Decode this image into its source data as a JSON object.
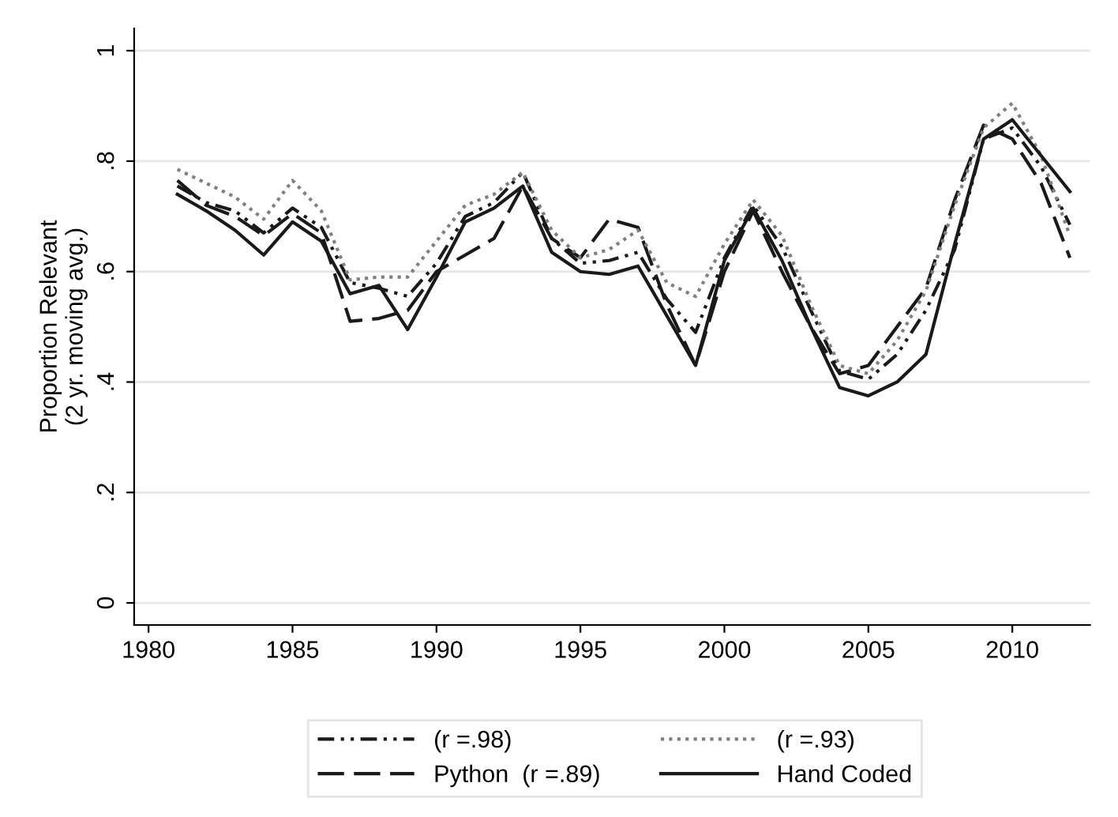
{
  "chart_data": {
    "type": "line",
    "ylabel": "Proportion Relevant\n(2 yr. moving avg.)",
    "x": [
      1981,
      1982,
      1983,
      1984,
      1985,
      1986,
      1987,
      1988,
      1989,
      1990,
      1991,
      1992,
      1993,
      1994,
      1995,
      1996,
      1997,
      1998,
      1999,
      2000,
      2001,
      2002,
      2003,
      2004,
      2005,
      2006,
      2007,
      2008,
      2009,
      2010,
      2011,
      2012
    ],
    "series": [
      {
        "name": "(r =.98)",
        "color": "#1a1a1a",
        "line_style": "dashdot",
        "values": [
          0.755,
          0.725,
          0.71,
          0.67,
          0.715,
          0.68,
          0.58,
          0.57,
          0.555,
          0.615,
          0.7,
          0.725,
          0.78,
          0.66,
          0.615,
          0.62,
          0.635,
          0.55,
          0.49,
          0.625,
          0.72,
          0.645,
          0.53,
          0.42,
          0.405,
          0.45,
          0.53,
          0.64,
          0.84,
          0.86,
          0.79,
          0.685
        ]
      },
      {
        "name": "Python  (r =.89)",
        "color": "#1a1a1a",
        "line_style": "dashed",
        "values": [
          0.765,
          0.72,
          0.7,
          0.665,
          0.705,
          0.67,
          0.51,
          0.515,
          0.53,
          0.6,
          0.63,
          0.66,
          0.755,
          0.66,
          0.625,
          0.695,
          0.68,
          0.54,
          0.43,
          0.6,
          0.71,
          0.6,
          0.5,
          0.415,
          0.43,
          0.5,
          0.57,
          0.73,
          0.865,
          0.84,
          0.76,
          0.625
        ]
      },
      {
        "name": "(r =.93)",
        "color": "#808080",
        "line_style": "dotted",
        "values": [
          0.785,
          0.76,
          0.735,
          0.695,
          0.765,
          0.71,
          0.585,
          0.59,
          0.59,
          0.655,
          0.72,
          0.74,
          0.78,
          0.675,
          0.625,
          0.64,
          0.675,
          0.58,
          0.555,
          0.65,
          0.73,
          0.665,
          0.54,
          0.43,
          0.415,
          0.475,
          0.565,
          0.72,
          0.86,
          0.905,
          0.81,
          0.665
        ]
      },
      {
        "name": "Hand Coded",
        "color": "#1a1a1a",
        "line_style": "solid",
        "values": [
          0.74,
          0.71,
          0.675,
          0.63,
          0.69,
          0.655,
          0.56,
          0.575,
          0.495,
          0.59,
          0.69,
          0.715,
          0.755,
          0.635,
          0.6,
          0.595,
          0.61,
          0.52,
          0.43,
          0.62,
          0.715,
          0.62,
          0.5,
          0.39,
          0.375,
          0.4,
          0.45,
          0.65,
          0.84,
          0.875,
          0.81,
          0.745
        ]
      }
    ],
    "xlim": [
      1979.5,
      2012.7
    ],
    "xticks": [
      1980,
      1985,
      1990,
      1995,
      2000,
      2005,
      2010
    ],
    "ylim": [
      -0.04,
      1.04
    ],
    "yticks": [
      {
        "value": 0,
        "label": "0"
      },
      {
        "value": 0.2,
        "label": ".2"
      },
      {
        "value": 0.4,
        "label": ".4"
      },
      {
        "value": 0.6,
        "label": ".6"
      },
      {
        "value": 0.8,
        "label": ".8"
      },
      {
        "value": 1,
        "label": "1"
      }
    ],
    "grid": "y",
    "legend": "bottom"
  }
}
